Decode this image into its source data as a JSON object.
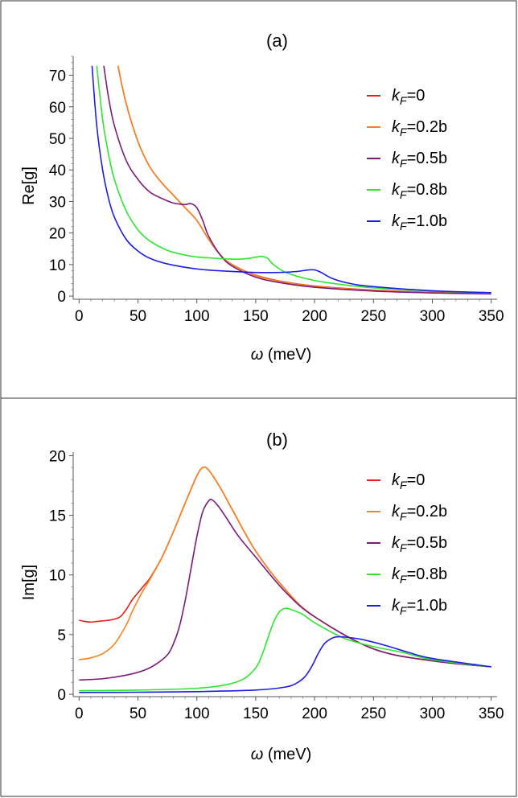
{
  "chart_data": [
    {
      "type": "line",
      "title": "(a)",
      "xlabel": "ω (meV)",
      "ylabel": "Re[g]",
      "xlim": [
        -5,
        355
      ],
      "ylim": [
        -1,
        76
      ],
      "xticks": [
        0,
        50,
        100,
        150,
        200,
        250,
        300,
        350
      ],
      "yticks": [
        0,
        10,
        20,
        30,
        40,
        50,
        60,
        70
      ],
      "legend_position": "top-right",
      "grid": false,
      "series": [
        {
          "name": "kF=0",
          "label_var": "k",
          "label_sub": "F",
          "label_val": "=0",
          "color": "#e8201a",
          "x": [
            33,
            40,
            50,
            60,
            70,
            80,
            90,
            100,
            110,
            120,
            130,
            150,
            170,
            200,
            250,
            300,
            350
          ],
          "y": [
            73,
            61,
            49,
            41,
            36,
            32,
            28,
            24,
            18,
            13,
            10,
            6.6,
            4.8,
            3.2,
            1.9,
            1.2,
            0.8
          ]
        },
        {
          "name": "kF=0.2b",
          "label_var": "k",
          "label_sub": "F",
          "label_val": "=0.2b",
          "color": "#f5841f",
          "x": [
            33,
            40,
            50,
            60,
            70,
            80,
            90,
            100,
            110,
            120,
            130,
            150,
            170,
            200,
            250,
            300,
            350
          ],
          "y": [
            73,
            61,
            49,
            41,
            36,
            32,
            28,
            24,
            18,
            13,
            10,
            6.5,
            4.7,
            3.1,
            1.8,
            1.1,
            0.7
          ]
        },
        {
          "name": "kF=0.5b",
          "label_var": "k",
          "label_sub": "F",
          "label_val": "=0.5b",
          "color": "#7b1b7a",
          "x": [
            21,
            25,
            30,
            40,
            50,
            60,
            70,
            80,
            85,
            90,
            95,
            100,
            105,
            110,
            120,
            130,
            150,
            170,
            200,
            250,
            300,
            350
          ],
          "y": [
            73,
            63,
            54,
            43,
            37,
            33,
            31,
            29.5,
            29.2,
            29.0,
            29.3,
            28,
            24,
            19,
            13,
            9.5,
            6,
            4.3,
            2.8,
            1.6,
            1.0,
            0.7
          ]
        },
        {
          "name": "kF=0.8b",
          "label_var": "k",
          "label_sub": "F",
          "label_val": "=0.8b",
          "color": "#2ee62e",
          "x": [
            15,
            20,
            25,
            30,
            40,
            50,
            60,
            75,
            90,
            100,
            115,
            130,
            140,
            150,
            155,
            160,
            165,
            175,
            190,
            210,
            250,
            300,
            350
          ],
          "y": [
            73,
            56,
            45,
            37,
            27,
            21,
            17.5,
            14.5,
            13,
            12.4,
            12.0,
            11.7,
            11.8,
            12.3,
            12.6,
            12,
            10,
            7.6,
            5.8,
            4.3,
            2.6,
            1.6,
            1.0
          ]
        },
        {
          "name": "kF=1.0b",
          "label_var": "k",
          "label_sub": "F",
          "label_val": "=1.0b",
          "color": "#1c1ee6",
          "x": [
            11,
            15,
            20,
            25,
            30,
            40,
            50,
            60,
            75,
            100,
            125,
            150,
            170,
            185,
            195,
            200,
            205,
            215,
            230,
            250,
            300,
            350
          ],
          "y": [
            73,
            54,
            40,
            31,
            25,
            18,
            14.3,
            12,
            10.2,
            8.6,
            7.9,
            7.5,
            7.5,
            7.8,
            8.3,
            8.3,
            7.6,
            5.6,
            4.0,
            3.0,
            1.7,
            1.1
          ]
        }
      ]
    },
    {
      "type": "line",
      "title": "(b)",
      "xlabel": "ω (meV)",
      "ylabel": "Im[g]",
      "xlim": [
        -5,
        355
      ],
      "ylim": [
        -0.2,
        20.3
      ],
      "xticks": [
        0,
        50,
        100,
        150,
        200,
        250,
        300,
        350
      ],
      "yticks": [
        0,
        5,
        10,
        15,
        20
      ],
      "legend_position": "top-right",
      "grid": false,
      "series": [
        {
          "name": "kF=0",
          "label_var": "k",
          "label_sub": "F",
          "label_val": "=0",
          "color": "#e8201a",
          "x": [
            0,
            5,
            10,
            15,
            20,
            25,
            30,
            35,
            40,
            45,
            50,
            55,
            60,
            70,
            80,
            90,
            100,
            105,
            110,
            120,
            130,
            150,
            175,
            200,
            250,
            300,
            350
          ],
          "y": [
            6.2,
            6.1,
            6.05,
            6.1,
            6.15,
            6.2,
            6.3,
            6.5,
            7.1,
            7.9,
            8.5,
            9.1,
            9.7,
            11.4,
            13.6,
            16,
            18.3,
            19.0,
            18.8,
            17.3,
            15.5,
            12.0,
            8.8,
            6.5,
            3.8,
            2.8,
            2.3
          ]
        },
        {
          "name": "kF=0.2b",
          "label_var": "k",
          "label_sub": "F",
          "label_val": "=0.2b",
          "color": "#f5841f",
          "x": [
            0,
            10,
            20,
            30,
            40,
            45,
            50,
            55,
            60,
            70,
            80,
            90,
            100,
            105,
            110,
            120,
            130,
            150,
            175,
            200,
            250,
            300,
            350
          ],
          "y": [
            2.9,
            3.05,
            3.4,
            4.2,
            5.8,
            6.9,
            7.9,
            8.8,
            9.6,
            11.4,
            13.6,
            16,
            18.3,
            19.0,
            18.8,
            17.3,
            15.5,
            12.0,
            8.8,
            6.5,
            3.8,
            2.8,
            2.3
          ]
        },
        {
          "name": "kF=0.5b",
          "label_var": "k",
          "label_sub": "F",
          "label_val": "=0.5b",
          "color": "#7b1b7a",
          "x": [
            0,
            20,
            40,
            55,
            65,
            75,
            80,
            85,
            90,
            95,
            100,
            105,
            110,
            113,
            118,
            125,
            135,
            150,
            175,
            200,
            250,
            300,
            350
          ],
          "y": [
            1.2,
            1.3,
            1.6,
            2.0,
            2.5,
            3.3,
            4.2,
            5.6,
            7.8,
            10.5,
            13.2,
            15.3,
            16.2,
            16.3,
            15.8,
            14.8,
            13.3,
            11.5,
            8.6,
            6.5,
            3.8,
            2.8,
            2.3
          ]
        },
        {
          "name": "kF=0.8b",
          "label_var": "k",
          "label_sub": "F",
          "label_val": "=0.8b",
          "color": "#2ee62e",
          "x": [
            0,
            50,
            100,
            125,
            140,
            150,
            155,
            160,
            165,
            170,
            175,
            180,
            190,
            200,
            225,
            250,
            275,
            300,
            350
          ],
          "y": [
            0.3,
            0.35,
            0.5,
            0.8,
            1.3,
            2.2,
            3.2,
            4.6,
            6.0,
            6.9,
            7.2,
            7.1,
            6.7,
            6.0,
            4.7,
            4.0,
            3.5,
            2.9,
            2.3
          ]
        },
        {
          "name": "kF=1.0b",
          "label_var": "k",
          "label_sub": "F",
          "label_val": "=1.0b",
          "color": "#1c1ee6",
          "x": [
            0,
            50,
            100,
            150,
            175,
            185,
            192,
            198,
            203,
            208,
            213,
            218,
            225,
            240,
            260,
            280,
            300,
            350
          ],
          "y": [
            0.15,
            0.17,
            0.22,
            0.35,
            0.6,
            0.95,
            1.5,
            2.4,
            3.4,
            4.2,
            4.6,
            4.8,
            4.8,
            4.6,
            4.1,
            3.5,
            3.0,
            2.3
          ]
        }
      ]
    }
  ]
}
